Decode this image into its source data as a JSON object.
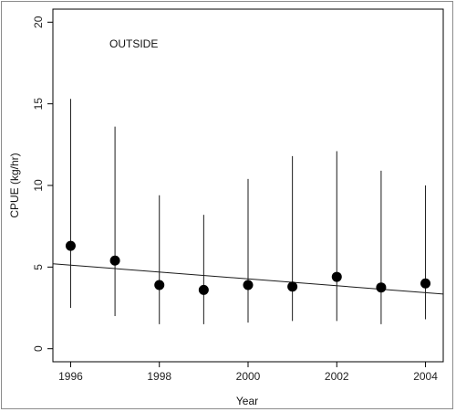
{
  "chart_data": {
    "type": "scatter",
    "annotation": "OUTSIDE",
    "xlabel": "Year",
    "ylabel": "CPUE (kg/hr)",
    "xlim": [
      1995.6,
      2004.4
    ],
    "ylim": [
      -0.8,
      20.8
    ],
    "xticks": [
      1996,
      1998,
      2000,
      2002,
      2004
    ],
    "yticks": [
      0,
      5,
      10,
      15,
      20
    ],
    "grid": false,
    "points": [
      {
        "x": 1996,
        "y": 6.3,
        "lo": 2.5,
        "hi": 15.3
      },
      {
        "x": 1997,
        "y": 5.4,
        "lo": 2.0,
        "hi": 13.6
      },
      {
        "x": 1998,
        "y": 3.9,
        "lo": 1.5,
        "hi": 9.4
      },
      {
        "x": 1999,
        "y": 3.6,
        "lo": 1.5,
        "hi": 8.2
      },
      {
        "x": 2000,
        "y": 3.9,
        "lo": 1.6,
        "hi": 10.4
      },
      {
        "x": 2001,
        "y": 3.8,
        "lo": 1.7,
        "hi": 11.8
      },
      {
        "x": 2002,
        "y": 4.4,
        "lo": 1.7,
        "hi": 12.1
      },
      {
        "x": 2003,
        "y": 3.75,
        "lo": 1.5,
        "hi": 10.9
      },
      {
        "x": 2004,
        "y": 4.0,
        "lo": 1.8,
        "hi": 10.0
      }
    ],
    "trend_line": {
      "x": [
        1995.6,
        2004.4
      ],
      "y": [
        5.2,
        3.35
      ]
    },
    "colors": {
      "points": "#000000",
      "lines": "#1a1a1a",
      "axis": "#000000"
    }
  }
}
